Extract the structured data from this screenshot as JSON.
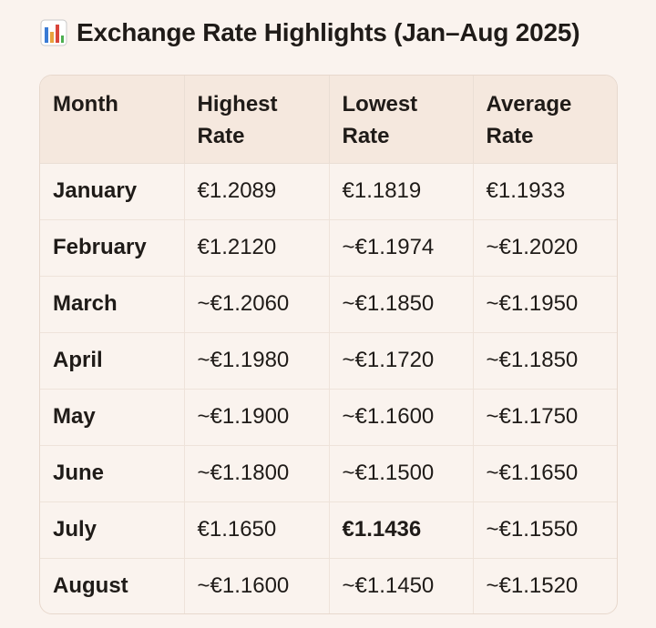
{
  "header": {
    "icon": "bar-chart-icon",
    "title": "Exchange Rate Highlights (Jan–Aug 2025)"
  },
  "table": {
    "columns": [
      "Month",
      "Highest Rate",
      "Lowest Rate",
      "Average Rate"
    ],
    "rows": [
      {
        "month": "January",
        "highest": "€1.2089",
        "lowest": "€1.1819",
        "average": "€1.1933"
      },
      {
        "month": "February",
        "highest": "€1.2120",
        "lowest": "~€1.1974",
        "average": "~€1.2020"
      },
      {
        "month": "March",
        "highest": "~€1.2060",
        "lowest": "~€1.1850",
        "average": "~€1.1950"
      },
      {
        "month": "April",
        "highest": "~€1.1980",
        "lowest": "~€1.1720",
        "average": "~€1.1850"
      },
      {
        "month": "May",
        "highest": "~€1.1900",
        "lowest": "~€1.1600",
        "average": "~€1.1750"
      },
      {
        "month": "June",
        "highest": "~€1.1800",
        "lowest": "~€1.1500",
        "average": "~€1.1650"
      },
      {
        "month": "July",
        "highest": "€1.1650",
        "lowest": "€1.1436",
        "average": "~€1.1550",
        "emphasis": "lowest"
      },
      {
        "month": "August",
        "highest": "~€1.1600",
        "lowest": "~€1.1450",
        "average": "~€1.1520"
      }
    ]
  },
  "colors": {
    "background": "#faf3ee",
    "header_row": "#f5e8de",
    "border": "#e7d8cd",
    "icon_bars": [
      "#3a7bd5",
      "#e8a33d",
      "#d9453b",
      "#4caf50"
    ]
  }
}
